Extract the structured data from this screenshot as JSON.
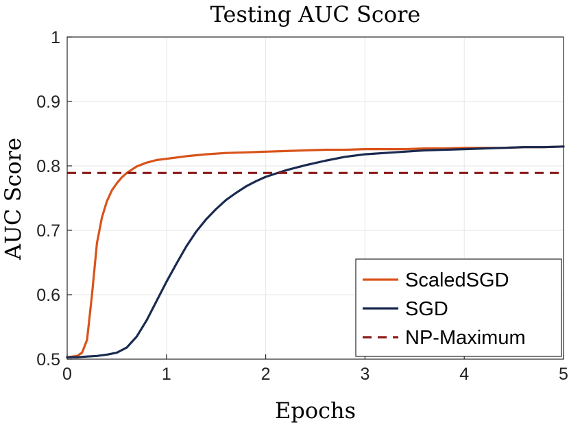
{
  "chart_data": {
    "type": "line",
    "title": "Testing AUC Score",
    "xlabel": "Epochs",
    "ylabel": "AUC Score",
    "xlim": [
      0,
      5
    ],
    "ylim": [
      0.5,
      1
    ],
    "xticks": [
      0,
      1,
      2,
      3,
      4,
      5
    ],
    "xtick_labels": [
      "0",
      "1",
      "2",
      "3",
      "4",
      "5"
    ],
    "yticks": [
      0.5,
      0.6,
      0.7,
      0.8,
      0.9,
      1
    ],
    "ytick_labels": [
      "0.5",
      "0.6",
      "0.7",
      "0.8",
      "0.9",
      "1"
    ],
    "grid": true,
    "legend_position": "bottom-right",
    "series": [
      {
        "name": "ScaledSGD",
        "color": "#d95319",
        "style": "solid",
        "x": [
          0,
          0.1,
          0.15,
          0.2,
          0.25,
          0.3,
          0.35,
          0.4,
          0.45,
          0.5,
          0.55,
          0.6,
          0.7,
          0.8,
          0.9,
          1.0,
          1.2,
          1.4,
          1.6,
          1.8,
          2.0,
          2.2,
          2.4,
          2.6,
          2.8,
          3.0,
          3.2,
          3.4,
          3.6,
          3.8,
          4.0,
          4.2,
          4.4,
          4.6,
          4.8,
          5.0
        ],
        "y": [
          0.503,
          0.505,
          0.51,
          0.53,
          0.6,
          0.68,
          0.72,
          0.745,
          0.762,
          0.773,
          0.782,
          0.789,
          0.799,
          0.805,
          0.809,
          0.811,
          0.815,
          0.818,
          0.82,
          0.821,
          0.822,
          0.823,
          0.824,
          0.825,
          0.825,
          0.826,
          0.826,
          0.826,
          0.827,
          0.827,
          0.828,
          0.828,
          0.828,
          0.829,
          0.829,
          0.83
        ]
      },
      {
        "name": "SGD",
        "color": "#1a2a50",
        "style": "solid",
        "x": [
          0,
          0.1,
          0.2,
          0.3,
          0.4,
          0.5,
          0.6,
          0.7,
          0.8,
          0.9,
          1.0,
          1.1,
          1.2,
          1.3,
          1.4,
          1.5,
          1.6,
          1.7,
          1.8,
          1.9,
          2.0,
          2.2,
          2.4,
          2.6,
          2.8,
          3.0,
          3.2,
          3.4,
          3.6,
          3.8,
          4.0,
          4.2,
          4.4,
          4.6,
          4.8,
          5.0
        ],
        "y": [
          0.503,
          0.503,
          0.504,
          0.505,
          0.507,
          0.51,
          0.518,
          0.535,
          0.56,
          0.59,
          0.62,
          0.648,
          0.675,
          0.698,
          0.717,
          0.733,
          0.747,
          0.758,
          0.768,
          0.776,
          0.783,
          0.793,
          0.801,
          0.808,
          0.814,
          0.818,
          0.82,
          0.822,
          0.824,
          0.825,
          0.826,
          0.827,
          0.828,
          0.829,
          0.829,
          0.83
        ]
      },
      {
        "name": "NP-Maximum",
        "color": "#8b1a1a",
        "style": "dashed",
        "x": [
          0,
          5
        ],
        "y": [
          0.789,
          0.789
        ]
      }
    ]
  }
}
